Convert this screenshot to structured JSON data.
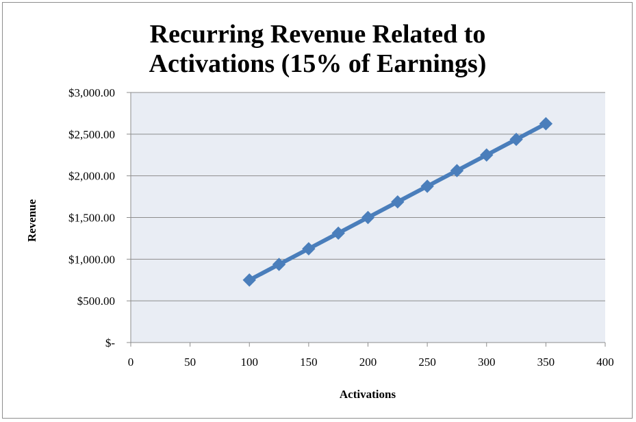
{
  "chart_data": {
    "type": "line",
    "title_lines": [
      "Recurring Revenue Related to",
      "Activations (15% of Earnings)"
    ],
    "xlabel": "Activations",
    "ylabel": "Revenue",
    "xlim": [
      0,
      400
    ],
    "ylim": [
      0,
      3000
    ],
    "x_ticks": [
      0,
      50,
      100,
      150,
      200,
      250,
      300,
      350,
      400
    ],
    "x_tick_labels": [
      "0",
      "50",
      "100",
      "150",
      "200",
      "250",
      "300",
      "350",
      "400"
    ],
    "y_ticks": [
      0,
      500,
      1000,
      1500,
      2000,
      2500,
      3000
    ],
    "y_tick_labels": [
      "$-",
      "$500.00",
      "$1,000.00",
      "$1,500.00",
      "$2,000.00",
      "$2,500.00",
      "$3,000.00"
    ],
    "grid": "horizontal",
    "legend": "none",
    "series": [
      {
        "x": [
          100,
          125,
          150,
          175,
          200,
          225,
          250,
          275,
          300,
          325,
          350
        ],
        "values": [
          750,
          937.5,
          1125,
          1312.5,
          1500,
          1687.5,
          1875,
          2062.5,
          2250,
          2437.5,
          2625
        ],
        "color": "#4a7ebb",
        "marker": "diamond"
      }
    ],
    "plot_background": "#e9edf4",
    "gridline_color": "#8c8c8c"
  }
}
